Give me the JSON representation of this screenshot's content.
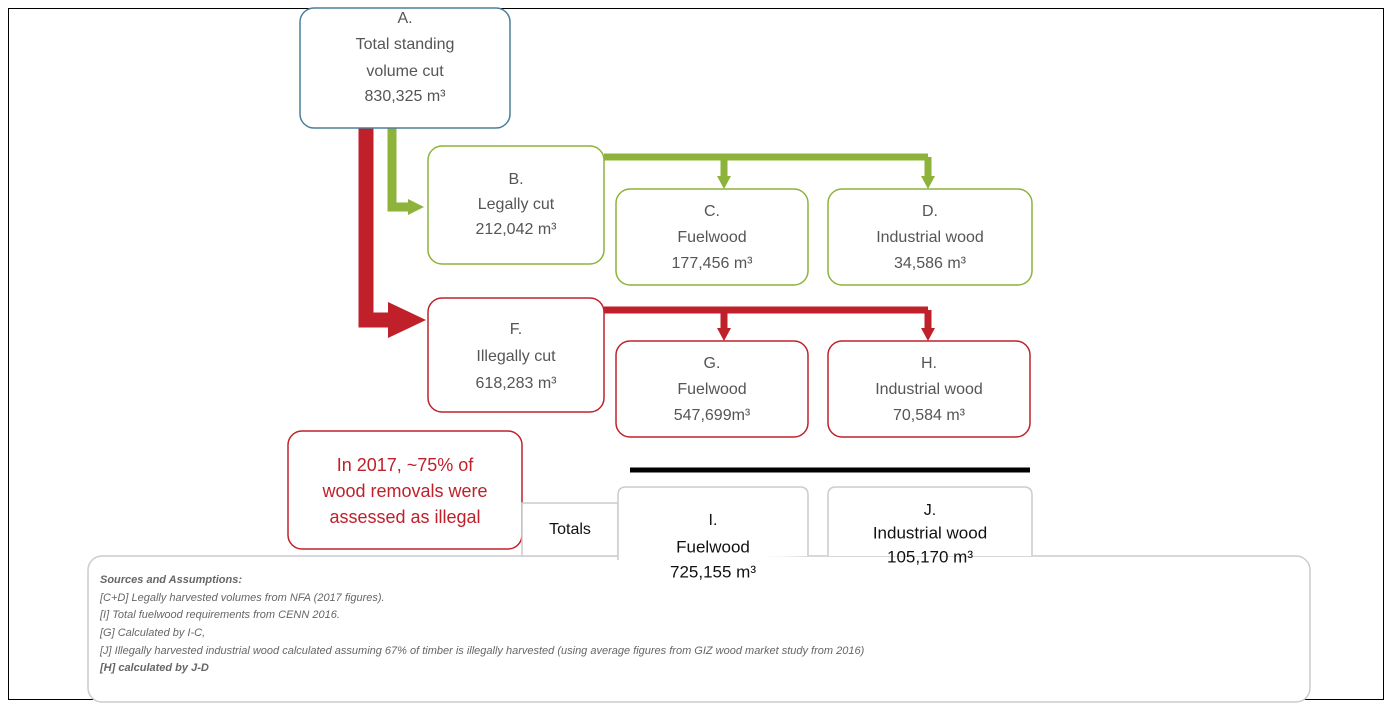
{
  "nodes": [
    {
      "letter": "A.",
      "label_lines": [
        "Total standing",
        "volume cut"
      ],
      "value": "830,325 m³"
    },
    {
      "letter": "B.",
      "label_lines": [
        "Legally cut"
      ],
      "value": "212,042 m³"
    },
    {
      "letter": "C.",
      "label_lines": [
        "Fuelwood"
      ],
      "value": "177,456 m³"
    },
    {
      "letter": "D.",
      "label_lines": [
        "Industrial wood"
      ],
      "value": "34,586 m³"
    },
    {
      "letter": "F.",
      "label_lines": [
        "Illegally cut"
      ],
      "value": "618,283 m³"
    },
    {
      "letter": "G.",
      "label_lines": [
        "Fuelwood"
      ],
      "value": "547,699m³"
    },
    {
      "letter": "H.",
      "label_lines": [
        "Industrial wood"
      ],
      "value": "70,584 m³"
    }
  ],
  "totals": {
    "label": "Totals",
    "items": [
      {
        "letter": "I.",
        "label": "Fuelwood",
        "value": "725,155 m³"
      },
      {
        "letter": "J.",
        "label": "Industrial wood",
        "value": "105,170 m³"
      }
    ]
  },
  "callout": [
    "In 2017, ~75% of",
    "wood removals were",
    "assessed as illegal"
  ],
  "sources": {
    "title": "Sources and Assumptions:",
    "lines": [
      "[C+D] Legally harvested volumes from NFA (2017 figures).",
      "[I] Total fuelwood requirements from CENN 2016.",
      "[G] Calculated by I-C,",
      "[J] Illegally harvested industrial wood calculated assuming 67% of timber is illegally harvested (using average figures from GIZ wood market study from 2016)",
      "[H] calculated by J-D"
    ]
  }
}
